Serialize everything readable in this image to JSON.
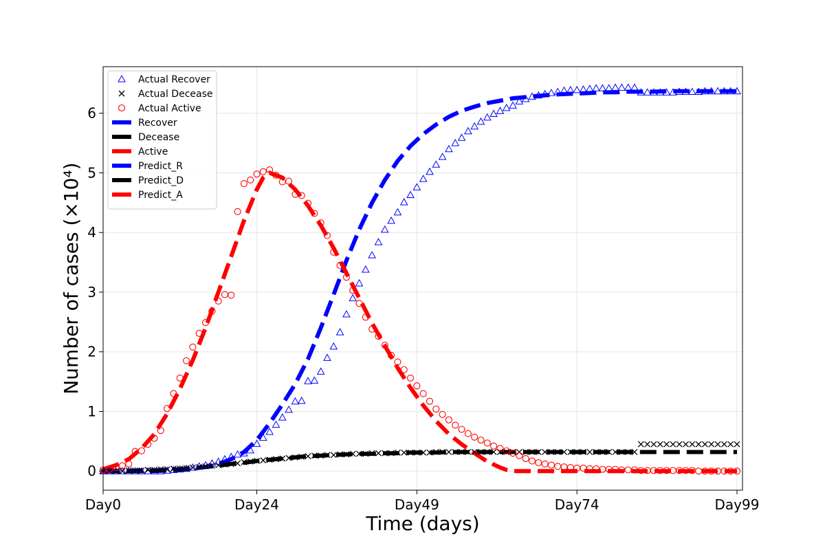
{
  "chart_data": {
    "type": "line",
    "xlabel": "Time (days)",
    "ylabel": "Number of cases (×10⁴)",
    "xlim": [
      0,
      100
    ],
    "ylim": [
      -0.32,
      6.78
    ],
    "grid": true,
    "legend_position": "top-left",
    "x_ticks": [
      {
        "value": 0,
        "label": "Day0"
      },
      {
        "value": 24,
        "label": "Day24"
      },
      {
        "value": 49,
        "label": "Day49"
      },
      {
        "value": 74,
        "label": "Day74"
      },
      {
        "value": 99,
        "label": "Day99"
      }
    ],
    "y_ticks": [
      0,
      1,
      2,
      3,
      4,
      5,
      6
    ],
    "colors": {
      "recover": "#0000ff",
      "decease": "#000000",
      "active": "#ff0000"
    },
    "legend": [
      {
        "label": "Actual Recover",
        "marker": "triangle",
        "color": "#0000ff"
      },
      {
        "label": "Actual Decease",
        "marker": "x",
        "color": "#000000"
      },
      {
        "label": "Actual Active",
        "marker": "circle",
        "color": "#ff0000"
      },
      {
        "label": "Recover",
        "marker": "line",
        "color": "#0000ff"
      },
      {
        "label": "Decease",
        "marker": "line",
        "color": "#000000"
      },
      {
        "label": "Active",
        "marker": "line",
        "color": "#ff0000"
      },
      {
        "label": "Predict_R",
        "marker": "line",
        "color": "#0000ff"
      },
      {
        "label": "Predict_D",
        "marker": "line",
        "color": "#000000"
      },
      {
        "label": "Predict_A",
        "marker": "line",
        "color": "#ff0000"
      }
    ],
    "series": [
      {
        "name": "Actual Recover",
        "kind": "scatter",
        "marker": "triangle",
        "color": "#0000ff",
        "x": [
          0,
          1,
          2,
          3,
          4,
          5,
          6,
          7,
          8,
          9,
          10,
          11,
          12,
          13,
          14,
          15,
          16,
          17,
          18,
          19,
          20,
          21,
          22,
          23,
          24,
          25,
          26,
          27,
          28,
          29,
          30,
          31,
          32,
          33,
          34,
          35,
          36,
          37,
          38,
          39,
          40,
          41,
          42,
          43,
          44,
          45,
          46,
          47,
          48,
          49,
          50,
          51,
          52,
          53,
          54,
          55,
          56,
          57,
          58,
          59,
          60,
          61,
          62,
          63,
          64,
          65,
          66,
          67,
          68,
          69,
          70,
          71,
          72,
          73,
          74,
          75,
          76,
          77,
          78,
          79,
          80,
          81,
          82,
          83,
          84,
          85,
          86,
          87,
          88,
          89,
          90,
          91,
          92,
          93,
          94,
          95,
          96,
          97,
          98,
          99
        ],
        "y": [
          0,
          0,
          0,
          0,
          0,
          0,
          0,
          0,
          0,
          0,
          0.01,
          0.02,
          0.03,
          0.04,
          0.06,
          0.08,
          0.1,
          0.13,
          0.16,
          0.2,
          0.24,
          0.28,
          0.3,
          0.35,
          0.46,
          0.56,
          0.66,
          0.78,
          0.9,
          1.03,
          1.17,
          1.18,
          1.51,
          1.52,
          1.67,
          1.9,
          2.09,
          2.33,
          2.63,
          2.9,
          3.15,
          3.38,
          3.62,
          3.84,
          4.05,
          4.2,
          4.34,
          4.51,
          4.63,
          4.76,
          4.9,
          5.02,
          5.14,
          5.27,
          5.4,
          5.5,
          5.59,
          5.7,
          5.78,
          5.86,
          5.93,
          5.99,
          6.04,
          6.09,
          6.13,
          6.2,
          6.24,
          6.28,
          6.3,
          6.32,
          6.34,
          6.36,
          6.38,
          6.39,
          6.39,
          6.4,
          6.41,
          6.42,
          6.42,
          6.42,
          6.43,
          6.43,
          6.43,
          6.43,
          6.35,
          6.35,
          6.35,
          6.35,
          6.35,
          6.35,
          6.36,
          6.36,
          6.36,
          6.36,
          6.37,
          6.37,
          6.37,
          6.37,
          6.37,
          6.37
        ]
      },
      {
        "name": "Actual Decease",
        "kind": "scatter",
        "marker": "x",
        "color": "#000000",
        "x": [
          0,
          1,
          2,
          3,
          4,
          5,
          6,
          7,
          8,
          9,
          10,
          11,
          12,
          13,
          14,
          15,
          16,
          17,
          18,
          19,
          20,
          21,
          22,
          23,
          24,
          25,
          26,
          27,
          28,
          29,
          30,
          31,
          32,
          33,
          34,
          35,
          36,
          37,
          38,
          39,
          40,
          41,
          42,
          43,
          44,
          45,
          46,
          47,
          48,
          49,
          50,
          51,
          52,
          53,
          54,
          55,
          56,
          57,
          58,
          59,
          60,
          61,
          62,
          63,
          64,
          65,
          66,
          67,
          68,
          69,
          70,
          71,
          72,
          73,
          74,
          75,
          76,
          77,
          78,
          79,
          80,
          81,
          82,
          83,
          84,
          85,
          86,
          87,
          88,
          89,
          90,
          91,
          92,
          93,
          94,
          95,
          96,
          97,
          98,
          99
        ],
        "y": [
          0,
          0,
          0,
          0,
          0.01,
          0.01,
          0.01,
          0.02,
          0.02,
          0.03,
          0.03,
          0.04,
          0.04,
          0.05,
          0.06,
          0.07,
          0.08,
          0.09,
          0.1,
          0.11,
          0.12,
          0.13,
          0.15,
          0.16,
          0.17,
          0.18,
          0.19,
          0.2,
          0.21,
          0.22,
          0.23,
          0.24,
          0.25,
          0.26,
          0.26,
          0.27,
          0.27,
          0.28,
          0.28,
          0.29,
          0.29,
          0.29,
          0.3,
          0.3,
          0.3,
          0.3,
          0.31,
          0.31,
          0.31,
          0.31,
          0.31,
          0.31,
          0.32,
          0.32,
          0.32,
          0.32,
          0.32,
          0.32,
          0.32,
          0.32,
          0.32,
          0.32,
          0.32,
          0.32,
          0.32,
          0.32,
          0.32,
          0.32,
          0.32,
          0.32,
          0.32,
          0.32,
          0.32,
          0.32,
          0.32,
          0.32,
          0.32,
          0.32,
          0.32,
          0.32,
          0.32,
          0.32,
          0.32,
          0.32,
          0.45,
          0.45,
          0.45,
          0.45,
          0.45,
          0.45,
          0.45,
          0.45,
          0.45,
          0.45,
          0.45,
          0.45,
          0.45,
          0.45,
          0.45,
          0.45
        ]
      },
      {
        "name": "Actual Active",
        "kind": "scatter",
        "marker": "circle",
        "color": "#ff0000",
        "x": [
          0,
          1,
          2,
          3,
          4,
          5,
          6,
          7,
          8,
          9,
          10,
          11,
          12,
          13,
          14,
          15,
          16,
          17,
          18,
          19,
          20,
          21,
          22,
          23,
          24,
          25,
          26,
          27,
          28,
          29,
          30,
          31,
          32,
          33,
          34,
          35,
          36,
          37,
          38,
          39,
          40,
          41,
          42,
          43,
          44,
          45,
          46,
          47,
          48,
          49,
          50,
          51,
          52,
          53,
          54,
          55,
          56,
          57,
          58,
          59,
          60,
          61,
          62,
          63,
          64,
          65,
          66,
          67,
          68,
          69,
          70,
          71,
          72,
          73,
          74,
          75,
          76,
          77,
          78,
          79,
          80,
          81,
          82,
          83,
          84,
          85,
          86,
          87,
          88,
          89,
          90,
          91,
          92,
          93,
          94,
          95,
          96,
          97,
          98,
          99
        ],
        "y": [
          0.02,
          0.03,
          0.06,
          0.09,
          0.12,
          0.33,
          0.34,
          0.45,
          0.55,
          0.68,
          1.05,
          1.3,
          1.56,
          1.85,
          2.08,
          2.31,
          2.49,
          2.68,
          2.85,
          2.96,
          2.95,
          4.35,
          4.82,
          4.88,
          4.98,
          5.02,
          5.05,
          4.96,
          4.85,
          4.86,
          4.64,
          4.62,
          4.49,
          4.32,
          4.16,
          3.95,
          3.67,
          3.45,
          3.25,
          3.03,
          2.81,
          2.58,
          2.38,
          2.26,
          2.11,
          1.94,
          1.83,
          1.7,
          1.56,
          1.43,
          1.3,
          1.17,
          1.04,
          0.95,
          0.86,
          0.77,
          0.7,
          0.63,
          0.57,
          0.52,
          0.47,
          0.42,
          0.38,
          0.34,
          0.3,
          0.26,
          0.21,
          0.17,
          0.14,
          0.12,
          0.1,
          0.08,
          0.07,
          0.06,
          0.05,
          0.05,
          0.04,
          0.04,
          0.03,
          0.03,
          0.03,
          0.02,
          0.02,
          0.02,
          0.01,
          0.01,
          0.01,
          0.01,
          0.01,
          0.01,
          0.01,
          0.01,
          0.01,
          0,
          0,
          0,
          0,
          0,
          0,
          0
        ]
      },
      {
        "name": "Predict_R",
        "kind": "line",
        "color": "#0000ff",
        "x": [
          0,
          2,
          4,
          6,
          8,
          10,
          12,
          14,
          16,
          18,
          20,
          22,
          24,
          26,
          28,
          30,
          32,
          34,
          36,
          38,
          40,
          42,
          44,
          46,
          48,
          50,
          52,
          54,
          56,
          58,
          60,
          62,
          64,
          66,
          68,
          70,
          72,
          74,
          76,
          78,
          80,
          82,
          84,
          86,
          88,
          90,
          92,
          94,
          96,
          98,
          99
        ],
        "y": [
          0,
          0,
          0,
          0,
          0,
          0.01,
          0.02,
          0.04,
          0.07,
          0.12,
          0.2,
          0.32,
          0.52,
          0.8,
          1.12,
          1.46,
          1.88,
          2.4,
          2.96,
          3.53,
          4.05,
          4.5,
          4.88,
          5.2,
          5.45,
          5.65,
          5.81,
          5.94,
          6.04,
          6.11,
          6.17,
          6.21,
          6.25,
          6.27,
          6.29,
          6.31,
          6.32,
          6.33,
          6.34,
          6.35,
          6.35,
          6.36,
          6.36,
          6.36,
          6.37,
          6.37,
          6.37,
          6.37,
          6.37,
          6.37,
          6.37
        ]
      },
      {
        "name": "Predict_D",
        "kind": "line",
        "color": "#000000",
        "x": [
          0,
          2,
          4,
          6,
          8,
          10,
          12,
          14,
          16,
          18,
          20,
          22,
          24,
          26,
          28,
          30,
          32,
          34,
          36,
          38,
          40,
          42,
          44,
          46,
          48,
          50,
          52,
          54,
          56,
          58,
          60,
          62,
          64,
          66,
          68,
          70,
          72,
          74,
          76,
          78,
          80,
          82,
          84,
          86,
          88,
          90,
          92,
          94,
          96,
          98,
          99
        ],
        "y": [
          0,
          0,
          0,
          0.01,
          0.01,
          0.02,
          0.03,
          0.05,
          0.07,
          0.09,
          0.12,
          0.14,
          0.17,
          0.19,
          0.21,
          0.23,
          0.25,
          0.26,
          0.27,
          0.28,
          0.29,
          0.29,
          0.3,
          0.3,
          0.31,
          0.31,
          0.31,
          0.32,
          0.32,
          0.32,
          0.32,
          0.32,
          0.32,
          0.32,
          0.32,
          0.32,
          0.32,
          0.32,
          0.32,
          0.32,
          0.32,
          0.32,
          0.32,
          0.32,
          0.32,
          0.32,
          0.32,
          0.32,
          0.32,
          0.32,
          0.32
        ]
      },
      {
        "name": "Predict_A",
        "kind": "line",
        "color": "#ff0000",
        "x": [
          0,
          2,
          4,
          6,
          8,
          10,
          12,
          14,
          16,
          18,
          20,
          22,
          24,
          25,
          26,
          28,
          30,
          32,
          34,
          36,
          38,
          40,
          42,
          44,
          46,
          48,
          50,
          52,
          54,
          56,
          58,
          60,
          62,
          63,
          64,
          66,
          68,
          70,
          72,
          74,
          76,
          78,
          80,
          82,
          84,
          86,
          88,
          90,
          92,
          94,
          96,
          98,
          99
        ],
        "y": [
          0.03,
          0.1,
          0.2,
          0.38,
          0.62,
          0.96,
          1.38,
          1.86,
          2.4,
          3.0,
          3.6,
          4.2,
          4.72,
          4.92,
          5.0,
          4.92,
          4.72,
          4.45,
          4.12,
          3.74,
          3.32,
          2.9,
          2.48,
          2.1,
          1.73,
          1.4,
          1.1,
          0.84,
          0.62,
          0.45,
          0.3,
          0.16,
          0.06,
          0.02,
          0,
          0,
          0,
          0,
          0,
          0,
          0,
          0,
          0,
          0,
          0,
          0,
          0,
          0,
          0,
          0,
          0,
          0,
          0
        ]
      }
    ]
  }
}
